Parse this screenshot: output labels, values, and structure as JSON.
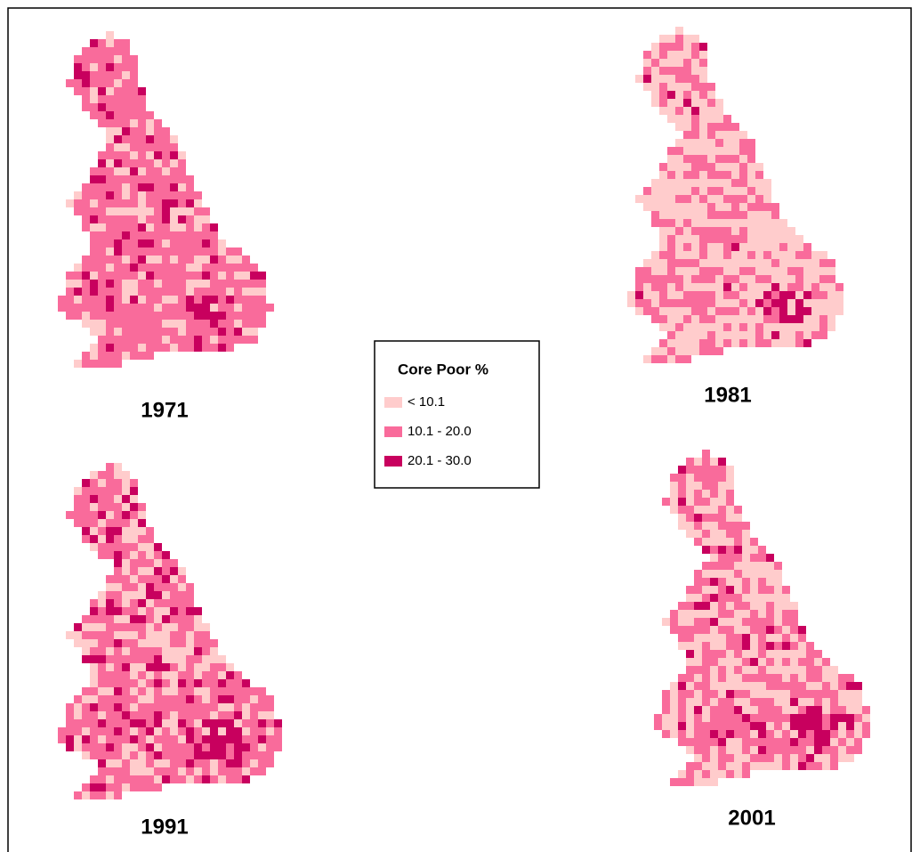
{
  "legend": {
    "title": "Core Poor %",
    "items": [
      {
        "label": "< 10.1",
        "color": "#ffcccc"
      },
      {
        "label": "10.1 - 20.0",
        "color": "#f96b9b"
      },
      {
        "label": "20.1 - 30.0",
        "color": "#c8005e"
      }
    ]
  },
  "maps": [
    {
      "year": "1971"
    },
    {
      "year": "1981"
    },
    {
      "year": "1991"
    },
    {
      "year": "2001"
    }
  ]
}
